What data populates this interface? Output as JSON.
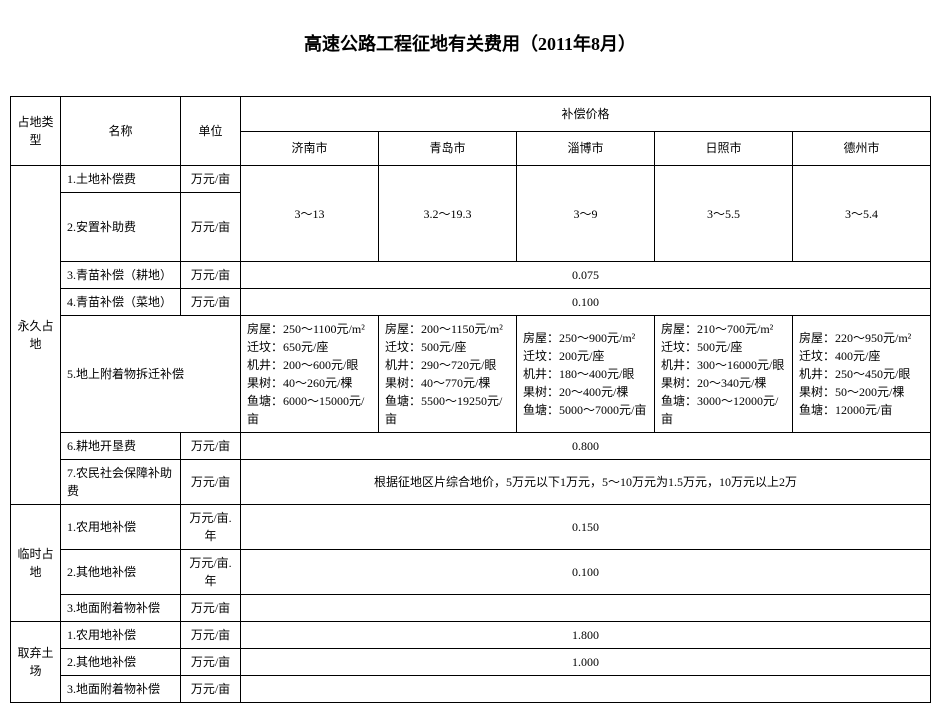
{
  "title": "高速公路工程征地有关费用（2011年8月）",
  "headers": {
    "type": "占地类型",
    "name": "名称",
    "unit": "单位",
    "priceGroup": "补偿价格",
    "cities": [
      "济南市",
      "青岛市",
      "淄博市",
      "日照市",
      "德州市"
    ]
  },
  "units": {
    "wyPerMu": "万元/亩",
    "wyPerMuYear": "万元/亩.年"
  },
  "groups": {
    "perm": "永久占地",
    "temp": "临时占地",
    "waste": "取弃土场"
  },
  "perm": {
    "r1_name": "1.土地补偿费",
    "r2_name": "2.安置补助费",
    "r12_values": [
      "3～13",
      "3.2～19.3",
      "3～9",
      "3～5.5",
      "3～5.4"
    ],
    "r3_name": "3.青苗补偿（耕地）",
    "r3_value": "0.075",
    "r4_name": "4.青苗补偿（菜地）",
    "r4_value": "0.100",
    "r5_name": "5.地上附着物拆迁补偿",
    "r5_cells": [
      "房屋：250～1100元/m²\n迁坟：650元/座\n机井：200～600元/眼\n果树：40～260元/棵\n鱼塘：6000～15000元/亩",
      "房屋：200～1150元/m²\n迁坟：500元/座\n机井：290～720元/眼\n果树：40～770元/棵\n鱼塘：5500～19250元/亩",
      "房屋：250～900元/m²\n迁坟：200元/座\n机井：180～400元/眼\n果树：20～400元/棵\n鱼塘：5000～7000元/亩",
      "房屋：210～700元/m²\n迁坟：500元/座\n机井：300～16000元/眼\n果树：20～340元/棵\n鱼塘：3000～12000元/亩",
      "房屋：220～950元/m²\n迁坟：400元/座\n机井：250～450元/眼\n果树：50～200元/棵\n鱼塘：12000元/亩"
    ],
    "r6_name": "6.耕地开垦费",
    "r6_value": "0.800",
    "r7_name": "7.农民社会保障补助费",
    "r7_value": "根据征地区片综合地价，5万元以下1万元，5～10万元为1.5万元，10万元以上2万"
  },
  "temp": {
    "r1_name": "1.农用地补偿",
    "r1_value": "0.150",
    "r2_name": "2.其他地补偿",
    "r2_value": "0.100",
    "r3_name": "3.地面附着物补偿",
    "r3_value": ""
  },
  "waste": {
    "r1_name": "1.农用地补偿",
    "r1_value": "1.800",
    "r2_name": "2.其他地补偿",
    "r2_value": "1.000",
    "r3_name": "3.地面附着物补偿",
    "r3_value": ""
  }
}
